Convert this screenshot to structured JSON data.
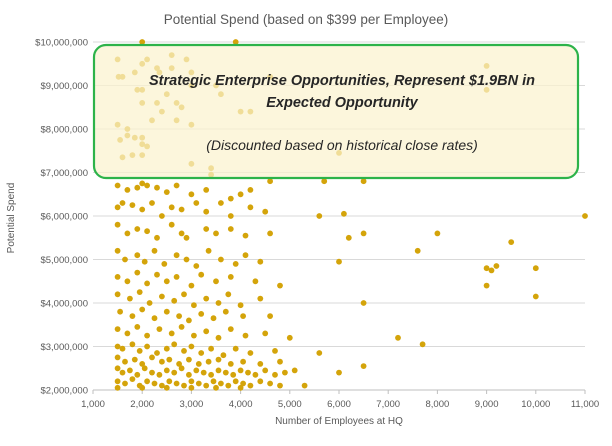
{
  "chart_data": {
    "type": "scatter",
    "title": "Potential Spend (based on $399 per Employee)",
    "xlabel": "Number of Employees at HQ",
    "ylabel": "Potential Spend",
    "xlim": [
      1000,
      11000
    ],
    "ylim": [
      2000000,
      10000000
    ],
    "x_ticks": [
      1000,
      2000,
      3000,
      4000,
      5000,
      6000,
      7000,
      8000,
      9000,
      10000,
      11000
    ],
    "x_tick_labels": [
      "1,000",
      "2,000",
      "3,000",
      "4,000",
      "5,000",
      "6,000",
      "7,000",
      "8,000",
      "9,000",
      "10,000",
      "11,000"
    ],
    "y_ticks": [
      2000000,
      3000000,
      4000000,
      5000000,
      6000000,
      7000000,
      8000000,
      9000000,
      10000000
    ],
    "y_tick_labels": [
      "$2,000,000",
      "$3,000,000",
      "$4,000,000",
      "$5,000,000",
      "$6,000,000",
      "$7,000,000",
      "$8,000,000",
      "$9,000,000",
      "$10,000,000"
    ],
    "grid": "horizontal",
    "point_color": "#d4a40a",
    "callout": {
      "headline_line1": "Strategic Enterprise Opportunities,  Represent $1.9BN in",
      "headline_line2": "Expected Opportunity",
      "subtext": "(Discounted based on historical close rates)",
      "border_color": "#2db34a"
    },
    "points": [
      [
        1500,
        9600000
      ],
      [
        1520,
        9200000
      ],
      [
        1600,
        9200000
      ],
      [
        2000,
        10000000
      ],
      [
        2000,
        9500000
      ],
      [
        2100,
        9600000
      ],
      [
        2300,
        9400000
      ],
      [
        2350,
        9300000
      ],
      [
        2600,
        9400000
      ],
      [
        2600,
        9700000
      ],
      [
        2900,
        9600000
      ],
      [
        3000,
        9300000
      ],
      [
        3000,
        9000000
      ],
      [
        3900,
        10000000
      ],
      [
        4600,
        9200000
      ],
      [
        9000,
        9450000
      ],
      [
        9000,
        8900000
      ],
      [
        1850,
        9300000
      ],
      [
        1900,
        8900000
      ],
      [
        2000,
        8900000
      ],
      [
        2000,
        8600000
      ],
      [
        2300,
        8600000
      ],
      [
        2500,
        8800000
      ],
      [
        2700,
        8600000
      ],
      [
        2800,
        8500000
      ],
      [
        3600,
        8800000
      ],
      [
        3500,
        9000000
      ],
      [
        2200,
        8200000
      ],
      [
        2400,
        8400000
      ],
      [
        2700,
        8200000
      ],
      [
        3000,
        8100000
      ],
      [
        4000,
        8400000
      ],
      [
        4200,
        8400000
      ],
      [
        1500,
        8100000
      ],
      [
        1550,
        7750000
      ],
      [
        1700,
        7850000
      ],
      [
        1700,
        8000000
      ],
      [
        1850,
        7800000
      ],
      [
        2000,
        7800000
      ],
      [
        2000,
        7650000
      ],
      [
        2100,
        7600000
      ],
      [
        2000,
        7400000
      ],
      [
        1600,
        7350000
      ],
      [
        1800,
        7400000
      ],
      [
        3000,
        7200000
      ],
      [
        3400,
        7100000
      ],
      [
        3400,
        6950000
      ],
      [
        6000,
        7450000
      ],
      [
        4600,
        6800000
      ],
      [
        5700,
        6800000
      ],
      [
        6500,
        6800000
      ],
      [
        1500,
        6700000
      ],
      [
        1700,
        6600000
      ],
      [
        1900,
        6650000
      ],
      [
        2000,
        6750000
      ],
      [
        2100,
        6700000
      ],
      [
        2300,
        6650000
      ],
      [
        2500,
        6550000
      ],
      [
        2700,
        6700000
      ],
      [
        3000,
        6500000
      ],
      [
        3300,
        6600000
      ],
      [
        3800,
        6400000
      ],
      [
        4000,
        6500000
      ],
      [
        4200,
        6600000
      ],
      [
        1500,
        6200000
      ],
      [
        1600,
        6300000
      ],
      [
        1800,
        6250000
      ],
      [
        2000,
        6150000
      ],
      [
        2200,
        6300000
      ],
      [
        2400,
        6000000
      ],
      [
        2600,
        6200000
      ],
      [
        2800,
        6150000
      ],
      [
        3100,
        6300000
      ],
      [
        3300,
        6100000
      ],
      [
        3600,
        6300000
      ],
      [
        3800,
        6000000
      ],
      [
        4200,
        6200000
      ],
      [
        4500,
        6100000
      ],
      [
        5600,
        6000000
      ],
      [
        6100,
        6050000
      ],
      [
        11000,
        6000000
      ],
      [
        1500,
        5800000
      ],
      [
        1700,
        5600000
      ],
      [
        1900,
        5700000
      ],
      [
        2100,
        5650000
      ],
      [
        2300,
        5500000
      ],
      [
        2600,
        5800000
      ],
      [
        2800,
        5600000
      ],
      [
        2900,
        5500000
      ],
      [
        3300,
        5700000
      ],
      [
        3500,
        5600000
      ],
      [
        3800,
        5700000
      ],
      [
        4100,
        5550000
      ],
      [
        4600,
        5600000
      ],
      [
        6200,
        5500000
      ],
      [
        6500,
        5600000
      ],
      [
        8000,
        5600000
      ],
      [
        7600,
        5200000
      ],
      [
        9500,
        5400000
      ],
      [
        1500,
        5200000
      ],
      [
        1650,
        5000000
      ],
      [
        1900,
        5100000
      ],
      [
        2050,
        4950000
      ],
      [
        2250,
        5200000
      ],
      [
        2450,
        4900000
      ],
      [
        2700,
        5100000
      ],
      [
        2900,
        5000000
      ],
      [
        3100,
        4850000
      ],
      [
        3350,
        5200000
      ],
      [
        3600,
        5000000
      ],
      [
        3900,
        4900000
      ],
      [
        4100,
        5100000
      ],
      [
        4400,
        4950000
      ],
      [
        6000,
        4950000
      ],
      [
        9000,
        4800000
      ],
      [
        9100,
        4750000
      ],
      [
        9200,
        4850000
      ],
      [
        10000,
        4800000
      ],
      [
        1500,
        4600000
      ],
      [
        1700,
        4500000
      ],
      [
        1900,
        4700000
      ],
      [
        2100,
        4450000
      ],
      [
        2300,
        4650000
      ],
      [
        2500,
        4500000
      ],
      [
        2700,
        4600000
      ],
      [
        3000,
        4400000
      ],
      [
        3200,
        4650000
      ],
      [
        3500,
        4500000
      ],
      [
        3800,
        4600000
      ],
      [
        4300,
        4500000
      ],
      [
        4800,
        4400000
      ],
      [
        9000,
        4400000
      ],
      [
        10000,
        4150000
      ],
      [
        6500,
        4000000
      ],
      [
        1500,
        4200000
      ],
      [
        1750,
        4100000
      ],
      [
        1950,
        4250000
      ],
      [
        2150,
        4000000
      ],
      [
        2400,
        4150000
      ],
      [
        2650,
        4050000
      ],
      [
        2850,
        4200000
      ],
      [
        3050,
        3950000
      ],
      [
        3300,
        4100000
      ],
      [
        3550,
        4000000
      ],
      [
        3750,
        4200000
      ],
      [
        4000,
        3950000
      ],
      [
        4400,
        4100000
      ],
      [
        1550,
        3800000
      ],
      [
        1800,
        3700000
      ],
      [
        2000,
        3850000
      ],
      [
        2250,
        3650000
      ],
      [
        2500,
        3800000
      ],
      [
        2750,
        3700000
      ],
      [
        2950,
        3600000
      ],
      [
        3200,
        3750000
      ],
      [
        3450,
        3650000
      ],
      [
        3700,
        3800000
      ],
      [
        4050,
        3700000
      ],
      [
        4600,
        3700000
      ],
      [
        1500,
        3400000
      ],
      [
        1700,
        3300000
      ],
      [
        1900,
        3450000
      ],
      [
        2100,
        3250000
      ],
      [
        2350,
        3400000
      ],
      [
        2600,
        3300000
      ],
      [
        2800,
        3450000
      ],
      [
        3050,
        3250000
      ],
      [
        3300,
        3350000
      ],
      [
        3550,
        3200000
      ],
      [
        3800,
        3400000
      ],
      [
        4100,
        3250000
      ],
      [
        4500,
        3300000
      ],
      [
        5000,
        3200000
      ],
      [
        7200,
        3200000
      ],
      [
        7700,
        3050000
      ],
      [
        1500,
        3000000
      ],
      [
        1600,
        2950000
      ],
      [
        1800,
        3050000
      ],
      [
        1950,
        2900000
      ],
      [
        2100,
        3000000
      ],
      [
        2300,
        2850000
      ],
      [
        2500,
        2950000
      ],
      [
        2650,
        3050000
      ],
      [
        2850,
        2900000
      ],
      [
        3000,
        3000000
      ],
      [
        3200,
        2850000
      ],
      [
        3400,
        2950000
      ],
      [
        3650,
        2800000
      ],
      [
        3900,
        2950000
      ],
      [
        4200,
        2850000
      ],
      [
        4700,
        2900000
      ],
      [
        5600,
        2850000
      ],
      [
        1500,
        2750000
      ],
      [
        1650,
        2650000
      ],
      [
        1850,
        2700000
      ],
      [
        2000,
        2600000
      ],
      [
        2200,
        2750000
      ],
      [
        2400,
        2650000
      ],
      [
        2550,
        2700000
      ],
      [
        2750,
        2600000
      ],
      [
        2950,
        2700000
      ],
      [
        3150,
        2600000
      ],
      [
        3350,
        2650000
      ],
      [
        3550,
        2700000
      ],
      [
        3800,
        2600000
      ],
      [
        4050,
        2650000
      ],
      [
        4400,
        2600000
      ],
      [
        4800,
        2650000
      ],
      [
        6500,
        2550000
      ],
      [
        1500,
        2500000
      ],
      [
        1600,
        2400000
      ],
      [
        1750,
        2450000
      ],
      [
        1900,
        2350000
      ],
      [
        2050,
        2500000
      ],
      [
        2200,
        2400000
      ],
      [
        2350,
        2350000
      ],
      [
        2500,
        2450000
      ],
      [
        2650,
        2400000
      ],
      [
        2800,
        2500000
      ],
      [
        2950,
        2350000
      ],
      [
        3100,
        2450000
      ],
      [
        3250,
        2400000
      ],
      [
        3400,
        2350000
      ],
      [
        3550,
        2450000
      ],
      [
        3700,
        2400000
      ],
      [
        3850,
        2350000
      ],
      [
        4000,
        2450000
      ],
      [
        4150,
        2400000
      ],
      [
        4300,
        2350000
      ],
      [
        4500,
        2450000
      ],
      [
        4700,
        2350000
      ],
      [
        4900,
        2400000
      ],
      [
        5100,
        2450000
      ],
      [
        6000,
        2400000
      ],
      [
        1500,
        2200000
      ],
      [
        1650,
        2150000
      ],
      [
        1800,
        2250000
      ],
      [
        1950,
        2100000
      ],
      [
        2100,
        2200000
      ],
      [
        2250,
        2150000
      ],
      [
        2400,
        2100000
      ],
      [
        2550,
        2200000
      ],
      [
        2700,
        2150000
      ],
      [
        2850,
        2100000
      ],
      [
        3000,
        2200000
      ],
      [
        3150,
        2150000
      ],
      [
        3300,
        2100000
      ],
      [
        3450,
        2200000
      ],
      [
        3600,
        2150000
      ],
      [
        3750,
        2100000
      ],
      [
        3900,
        2200000
      ],
      [
        4050,
        2150000
      ],
      [
        4200,
        2100000
      ],
      [
        4400,
        2200000
      ],
      [
        4600,
        2150000
      ],
      [
        4800,
        2100000
      ],
      [
        5300,
        2100000
      ],
      [
        1500,
        2050000
      ],
      [
        2000,
        2050000
      ],
      [
        2500,
        2050000
      ],
      [
        3000,
        2050000
      ],
      [
        3500,
        2050000
      ],
      [
        4000,
        2050000
      ]
    ]
  }
}
